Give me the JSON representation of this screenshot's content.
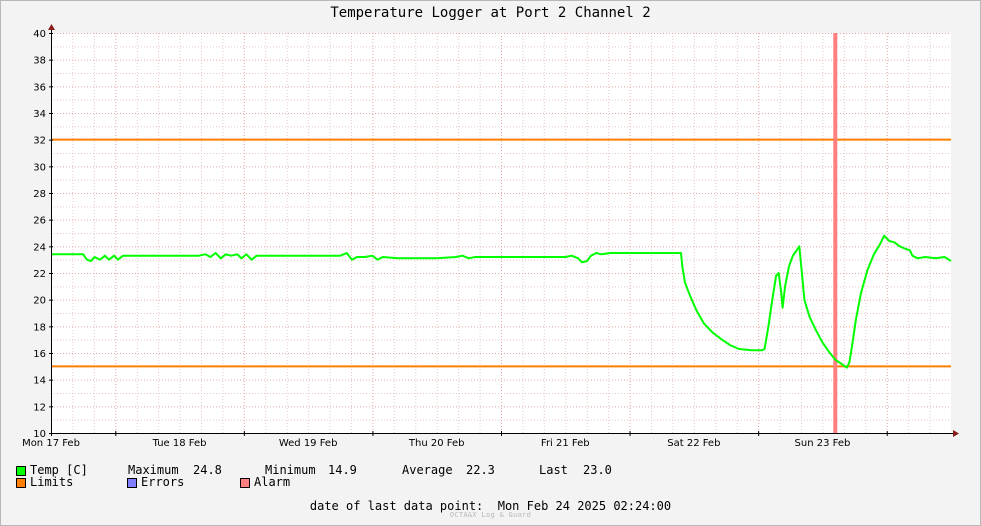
{
  "chart_data": {
    "type": "line",
    "title": "Temperature Logger at Port 2 Channel 2",
    "ylim": [
      10,
      40
    ],
    "yticks": [
      10,
      12,
      14,
      16,
      18,
      20,
      22,
      24,
      26,
      28,
      30,
      32,
      34,
      36,
      38,
      40
    ],
    "xlim": [
      0,
      7.0
    ],
    "x_tick_labels": [
      "Mon 17 Feb",
      "Tue 18 Feb",
      "Wed 19 Feb",
      "Thu 20 Feb",
      "Fri 21 Feb",
      "Sat 22 Feb",
      "Sun 23 Feb"
    ],
    "x_unit": "days since Mon 17 Feb 00:00",
    "grid": true,
    "limits": {
      "upper": 32,
      "lower": 15
    },
    "alarm_at": 6.1,
    "series": [
      {
        "name": "Temp [C]",
        "color": "#00ff00",
        "points": [
          [
            0.0,
            23.4
          ],
          [
            0.2,
            23.4
          ],
          [
            0.25,
            23.4
          ],
          [
            0.28,
            23.0
          ],
          [
            0.31,
            22.9
          ],
          [
            0.34,
            23.2
          ],
          [
            0.38,
            23.0
          ],
          [
            0.42,
            23.3
          ],
          [
            0.45,
            23.0
          ],
          [
            0.49,
            23.3
          ],
          [
            0.52,
            23.0
          ],
          [
            0.56,
            23.3
          ],
          [
            0.65,
            23.3
          ],
          [
            0.8,
            23.3
          ],
          [
            1.0,
            23.3
          ],
          [
            1.15,
            23.3
          ],
          [
            1.2,
            23.4
          ],
          [
            1.24,
            23.2
          ],
          [
            1.28,
            23.5
          ],
          [
            1.32,
            23.1
          ],
          [
            1.36,
            23.4
          ],
          [
            1.4,
            23.3
          ],
          [
            1.45,
            23.4
          ],
          [
            1.48,
            23.1
          ],
          [
            1.52,
            23.4
          ],
          [
            1.56,
            23.0
          ],
          [
            1.6,
            23.3
          ],
          [
            1.8,
            23.3
          ],
          [
            2.0,
            23.3
          ],
          [
            2.25,
            23.3
          ],
          [
            2.3,
            23.5
          ],
          [
            2.34,
            23.0
          ],
          [
            2.38,
            23.2
          ],
          [
            2.44,
            23.2
          ],
          [
            2.5,
            23.3
          ],
          [
            2.54,
            23.0
          ],
          [
            2.58,
            23.2
          ],
          [
            2.7,
            23.1
          ],
          [
            2.85,
            23.1
          ],
          [
            3.0,
            23.1
          ],
          [
            3.15,
            23.2
          ],
          [
            3.2,
            23.3
          ],
          [
            3.25,
            23.1
          ],
          [
            3.3,
            23.2
          ],
          [
            3.4,
            23.2
          ],
          [
            3.6,
            23.2
          ],
          [
            3.8,
            23.2
          ],
          [
            4.0,
            23.2
          ],
          [
            4.05,
            23.3
          ],
          [
            4.1,
            23.1
          ],
          [
            4.13,
            22.8
          ],
          [
            4.17,
            22.9
          ],
          [
            4.2,
            23.3
          ],
          [
            4.24,
            23.5
          ],
          [
            4.28,
            23.4
          ],
          [
            4.35,
            23.5
          ],
          [
            4.5,
            23.5
          ],
          [
            4.65,
            23.5
          ],
          [
            4.9,
            23.5
          ],
          [
            4.91,
            22.5
          ],
          [
            4.93,
            21.3
          ],
          [
            4.97,
            20.3
          ],
          [
            5.02,
            19.2
          ],
          [
            5.08,
            18.2
          ],
          [
            5.15,
            17.5
          ],
          [
            5.22,
            17.0
          ],
          [
            5.28,
            16.6
          ],
          [
            5.35,
            16.3
          ],
          [
            5.45,
            16.2
          ],
          [
            5.53,
            16.2
          ],
          [
            5.55,
            16.3
          ],
          [
            5.58,
            18.0
          ],
          [
            5.61,
            20.0
          ],
          [
            5.64,
            21.8
          ],
          [
            5.66,
            22.0
          ],
          [
            5.68,
            20.5
          ],
          [
            5.69,
            19.4
          ],
          [
            5.71,
            21.0
          ],
          [
            5.74,
            22.5
          ],
          [
            5.77,
            23.3
          ],
          [
            5.8,
            23.7
          ],
          [
            5.82,
            24.0
          ],
          [
            5.84,
            22.0
          ],
          [
            5.86,
            20.0
          ],
          [
            5.9,
            18.7
          ],
          [
            5.95,
            17.7
          ],
          [
            6.0,
            16.8
          ],
          [
            6.05,
            16.1
          ],
          [
            6.1,
            15.5
          ],
          [
            6.16,
            15.1
          ],
          [
            6.19,
            14.9
          ],
          [
            6.21,
            15.3
          ],
          [
            6.23,
            16.5
          ],
          [
            6.26,
            18.5
          ],
          [
            6.3,
            20.5
          ],
          [
            6.35,
            22.2
          ],
          [
            6.4,
            23.4
          ],
          [
            6.45,
            24.2
          ],
          [
            6.48,
            24.8
          ],
          [
            6.52,
            24.4
          ],
          [
            6.56,
            24.3
          ],
          [
            6.6,
            24.0
          ],
          [
            6.65,
            23.8
          ],
          [
            6.68,
            23.7
          ],
          [
            6.7,
            23.3
          ],
          [
            6.74,
            23.1
          ],
          [
            6.8,
            23.2
          ],
          [
            6.88,
            23.1
          ],
          [
            6.95,
            23.2
          ],
          [
            7.0,
            22.9
          ]
        ]
      }
    ]
  },
  "legend": {
    "temp_label": "Temp [C]",
    "maximum_label": "Maximum",
    "maximum_value": "24.8",
    "minimum_label": "Minimum",
    "minimum_value": "14.9",
    "average_label": "Average",
    "average_value": "22.3",
    "last_label": "Last",
    "last_value": "23.0",
    "limits_label": "Limits",
    "errors_label": "Errors",
    "alarm_label": "Alarm",
    "colors": {
      "temp": "#00ff00",
      "limits": "#ff7f00",
      "errors": "#7f7fff",
      "alarm": "#ff7f7f"
    }
  },
  "footer": {
    "date_label": "date of last data point:",
    "date_value": "Mon Feb 24 2025 02:24:00",
    "watermark": "OCTA&X Log & Guard"
  }
}
